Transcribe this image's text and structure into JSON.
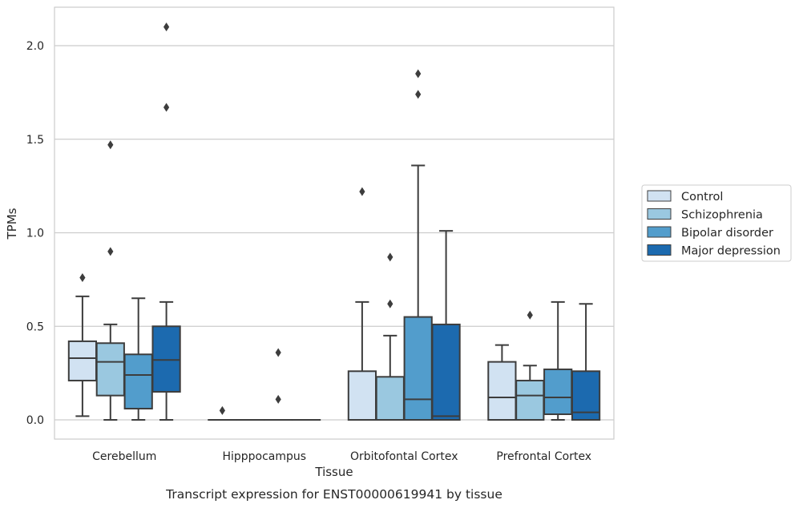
{
  "chart_data": {
    "type": "box",
    "title": "",
    "caption": "Transcript expression for ENST00000619941 by tissue",
    "xlabel": "Tissue",
    "ylabel": "TPMs",
    "ylim": [
      -0.1,
      2.22
    ],
    "yticks": [
      0.0,
      0.5,
      1.0,
      1.5,
      2.0
    ],
    "ytick_labels": [
      "0.0",
      "0.5",
      "1.0",
      "1.5",
      "2.0"
    ],
    "grid": "horizontal",
    "legend_position": "right",
    "categories": [
      "Cerebellum",
      "Hipppocampus",
      "Orbitofontal Cortex",
      "Prefrontal Cortex"
    ],
    "series": [
      {
        "name": "Control",
        "color": "#d1e2f2",
        "boxes": [
          {
            "whislo": 0.02,
            "q1": 0.21,
            "med": 0.33,
            "q3": 0.42,
            "whishi": 0.66,
            "fliers": [
              0.76
            ]
          },
          {
            "whislo": 0.0,
            "q1": 0.0,
            "med": 0.0,
            "q3": 0.0,
            "whishi": 0.0,
            "fliers": [
              0.05
            ]
          },
          {
            "whislo": 0.0,
            "q1": 0.0,
            "med": 0.0,
            "q3": 0.26,
            "whishi": 0.63,
            "fliers": [
              1.22
            ]
          },
          {
            "whislo": 0.0,
            "q1": 0.0,
            "med": 0.12,
            "q3": 0.31,
            "whishi": 0.4,
            "fliers": []
          }
        ]
      },
      {
        "name": "Schizophrenia",
        "color": "#9ac8e0",
        "boxes": [
          {
            "whislo": 0.0,
            "q1": 0.13,
            "med": 0.31,
            "q3": 0.41,
            "whishi": 0.51,
            "fliers": [
              0.9,
              1.47
            ]
          },
          {
            "whislo": 0.0,
            "q1": 0.0,
            "med": 0.0,
            "q3": 0.0,
            "whishi": 0.0,
            "fliers": []
          },
          {
            "whislo": 0.0,
            "q1": 0.0,
            "med": 0.0,
            "q3": 0.23,
            "whishi": 0.45,
            "fliers": [
              0.62,
              0.87
            ]
          },
          {
            "whislo": 0.0,
            "q1": 0.0,
            "med": 0.13,
            "q3": 0.21,
            "whishi": 0.29,
            "fliers": [
              0.56
            ]
          }
        ]
      },
      {
        "name": "Bipolar disorder",
        "color": "#529dcc",
        "boxes": [
          {
            "whislo": 0.0,
            "q1": 0.06,
            "med": 0.24,
            "q3": 0.35,
            "whishi": 0.65,
            "fliers": []
          },
          {
            "whislo": 0.0,
            "q1": 0.0,
            "med": 0.0,
            "q3": 0.0,
            "whishi": 0.0,
            "fliers": [
              0.11,
              0.36
            ]
          },
          {
            "whislo": 0.0,
            "q1": 0.0,
            "med": 0.11,
            "q3": 0.55,
            "whishi": 1.36,
            "fliers": [
              1.74,
              1.85
            ]
          },
          {
            "whislo": 0.0,
            "q1": 0.03,
            "med": 0.12,
            "q3": 0.27,
            "whishi": 0.63,
            "fliers": []
          }
        ]
      },
      {
        "name": "Major depression",
        "color": "#1c6aaf",
        "boxes": [
          {
            "whislo": 0.0,
            "q1": 0.15,
            "med": 0.32,
            "q3": 0.5,
            "whishi": 0.63,
            "fliers": [
              1.67,
              2.1
            ]
          },
          {
            "whislo": 0.0,
            "q1": 0.0,
            "med": 0.0,
            "q3": 0.0,
            "whishi": 0.0,
            "fliers": []
          },
          {
            "whislo": 0.0,
            "q1": 0.0,
            "med": 0.02,
            "q3": 0.51,
            "whishi": 1.01,
            "fliers": []
          },
          {
            "whislo": 0.0,
            "q1": 0.0,
            "med": 0.04,
            "q3": 0.26,
            "whishi": 0.62,
            "fliers": []
          }
        ]
      }
    ]
  }
}
